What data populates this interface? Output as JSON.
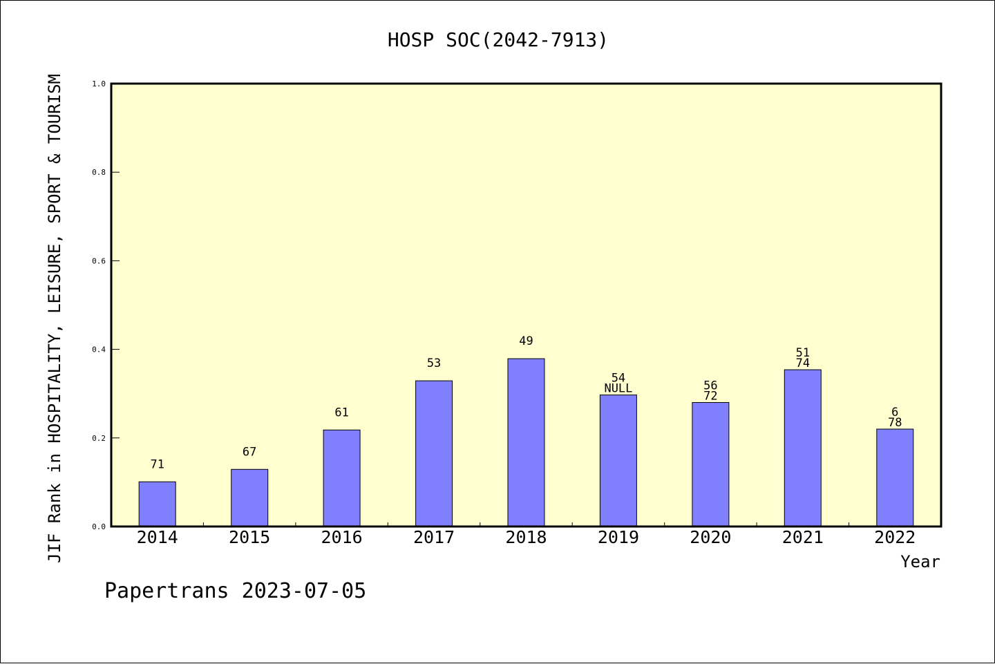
{
  "chart_data": {
    "type": "bar",
    "title": "HOSP SOC(2042-7913)",
    "xlabel": "Year",
    "ylabel": "JIF Rank in HOSPITALITY, LEISURE, SPORT & TOURISM",
    "ylim": [
      0,
      1.0
    ],
    "yticks": [
      "0.0",
      "0.2",
      "0.4",
      "0.6",
      "0.8",
      "1.0"
    ],
    "ytick_values": [
      0,
      0.2,
      0.4,
      0.6,
      0.8,
      1.0
    ],
    "categories": [
      "2014",
      "2015",
      "2016",
      "2017",
      "2018",
      "2019",
      "2020",
      "2021",
      "2022"
    ],
    "series": [
      {
        "values": [
          0.101,
          0.129,
          0.218,
          0.329,
          0.379,
          0.297,
          0.28,
          0.354,
          0.22
        ],
        "labels_top": [
          "71",
          "67",
          "61",
          "53",
          "49",
          "54",
          "56",
          "51",
          "6"
        ],
        "labels_bottom": [
          "",
          "",
          "",
          "",
          "",
          "NULL",
          "72",
          "74",
          "78"
        ]
      }
    ],
    "colors": {
      "bar": "#8080ff",
      "plot_bg": "#ffffd0",
      "axis": "#000000"
    },
    "grid": false,
    "footer": "Papertrans 2023-07-05"
  }
}
